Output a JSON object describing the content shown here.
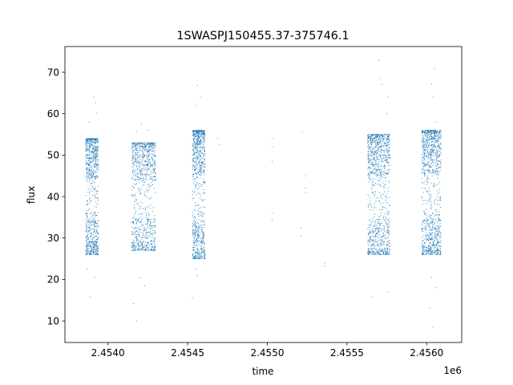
{
  "chart_data": {
    "type": "scatter",
    "title": "1SWASPJ150455.37-375746.1",
    "xlabel": "time",
    "ylabel": "flux",
    "x_offset_label": "1e6",
    "xlim": [
      2.45373,
      2.45622
    ],
    "ylim": [
      4.8,
      76.2
    ],
    "grid": false,
    "x_ticks": [
      2.454,
      2.4545,
      2.455,
      2.4555,
      2.456
    ],
    "x_tick_labels": [
      "2.4540",
      "2.4545",
      "2.4550",
      "2.4555",
      "2.4560"
    ],
    "y_ticks": [
      10,
      20,
      30,
      40,
      50,
      60,
      70
    ],
    "y_tick_labels": [
      "10",
      "20",
      "30",
      "40",
      "50",
      "60",
      "70"
    ],
    "point_color": "#1f77b4",
    "series": [
      {
        "values_note": "",
        "clusters": [
          {
            "x_range": [
              2.45386,
              2.45394
            ],
            "flux_low": 26,
            "flux_high": 54,
            "n": 900
          },
          {
            "x_range": [
              2.45415,
              2.4543
            ],
            "flux_low": 27,
            "flux_high": 53,
            "n": 1000
          },
          {
            "x_range": [
              2.45453,
              2.45461
            ],
            "flux_low": 25,
            "flux_high": 56,
            "n": 900
          },
          {
            "x_range": [
              2.45563,
              2.45577
            ],
            "flux_low": 26,
            "flux_high": 55,
            "n": 1100
          },
          {
            "x_range": [
              2.45597,
              2.45609
            ],
            "flux_low": 26,
            "flux_high": 56,
            "n": 1100
          }
        ],
        "points": [
          [
            2.45391,
            64.0
          ],
          [
            2.45392,
            62.5
          ],
          [
            2.45388,
            58.0
          ],
          [
            2.45393,
            60.1
          ],
          [
            2.45389,
            15.8
          ],
          [
            2.45387,
            22.5
          ],
          [
            2.45392,
            20.5
          ],
          [
            2.45421,
            57.4
          ],
          [
            2.45418,
            55.7
          ],
          [
            2.45425,
            56.0
          ],
          [
            2.45416,
            14.2
          ],
          [
            2.45418,
            10.0
          ],
          [
            2.45423,
            18.5
          ],
          [
            2.4542,
            20.4
          ],
          [
            2.45456,
            66.8
          ],
          [
            2.45458,
            64.0
          ],
          [
            2.45455,
            62.0
          ],
          [
            2.45455,
            22.5
          ],
          [
            2.45456,
            21.0
          ],
          [
            2.45453,
            15.5
          ],
          [
            2.45469,
            54.0
          ],
          [
            2.4547,
            52.5
          ],
          [
            2.45503,
            54.0
          ],
          [
            2.45503,
            52.0
          ],
          [
            2.45503,
            48.5
          ],
          [
            2.45503,
            36.0
          ],
          [
            2.45503,
            34.5
          ],
          [
            2.45522,
            55.5
          ],
          [
            2.45521,
            32.5
          ],
          [
            2.45521,
            30.5
          ],
          [
            2.45524,
            45.0
          ],
          [
            2.45524,
            42.0
          ],
          [
            2.45524,
            41.0
          ],
          [
            2.45536,
            24.0
          ],
          [
            2.45536,
            23.2
          ],
          [
            2.4557,
            72.8
          ],
          [
            2.45571,
            68.5
          ],
          [
            2.45572,
            67.0
          ],
          [
            2.45576,
            64.0
          ],
          [
            2.45575,
            60.0
          ],
          [
            2.45566,
            15.8
          ],
          [
            2.45576,
            17.0
          ],
          [
            2.45605,
            70.8
          ],
          [
            2.45603,
            67.2
          ],
          [
            2.45604,
            64.0
          ],
          [
            2.45606,
            58.0
          ],
          [
            2.45602,
            13.0
          ],
          [
            2.45604,
            8.5
          ],
          [
            2.45606,
            18.0
          ],
          [
            2.45603,
            20.5
          ]
        ]
      }
    ]
  }
}
